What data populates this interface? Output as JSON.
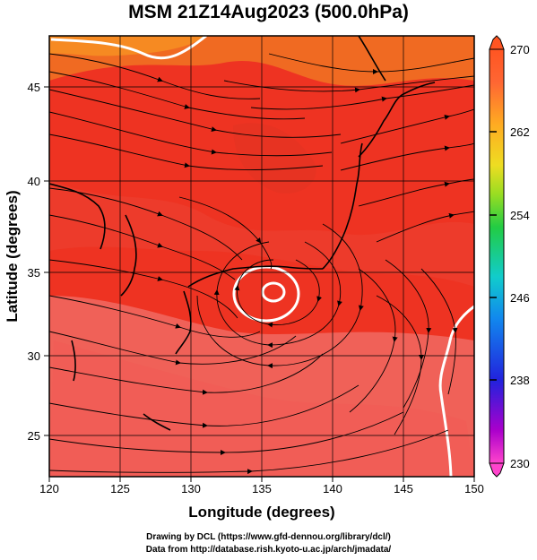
{
  "title": "MSM 21Z14Aug2023 (500.0hPa)",
  "map": {
    "projection": "equirectangular",
    "lon_range": [
      120,
      150
    ],
    "lat_range": [
      22.7,
      48
    ],
    "xlabel": "Longitude (degrees)",
    "ylabel": "Latitude  (degrees)",
    "x_ticks": [
      "120",
      "125",
      "130",
      "135",
      "140",
      "145",
      "150"
    ],
    "y_ticks": [
      "25",
      "30",
      "35",
      "40",
      "45"
    ],
    "gridlines": true,
    "field_shading": "temperature (K) shaded, streamlines overlaid",
    "contour_color": "#ffffff",
    "vortex_center": {
      "lon": 135.5,
      "lat": 33.8
    }
  },
  "colorbar": {
    "ticks": [
      "270",
      "262",
      "254",
      "246",
      "238",
      "230"
    ],
    "min": 230,
    "max": 270,
    "colors": [
      "#ff44cc",
      "#aa00cc",
      "#2222dd",
      "#1188ee",
      "#11cccc",
      "#22cc44",
      "#99dd22",
      "#eedd22",
      "#ffaa22",
      "#ff6633",
      "#ff5522"
    ]
  },
  "footer": {
    "line1": "Drawing by DCL (https://www.gfd-dennou.org/library/dcl/)",
    "line2": "Data from http://database.rish.kyoto-u.ac.jp/arch/jmadata/"
  }
}
